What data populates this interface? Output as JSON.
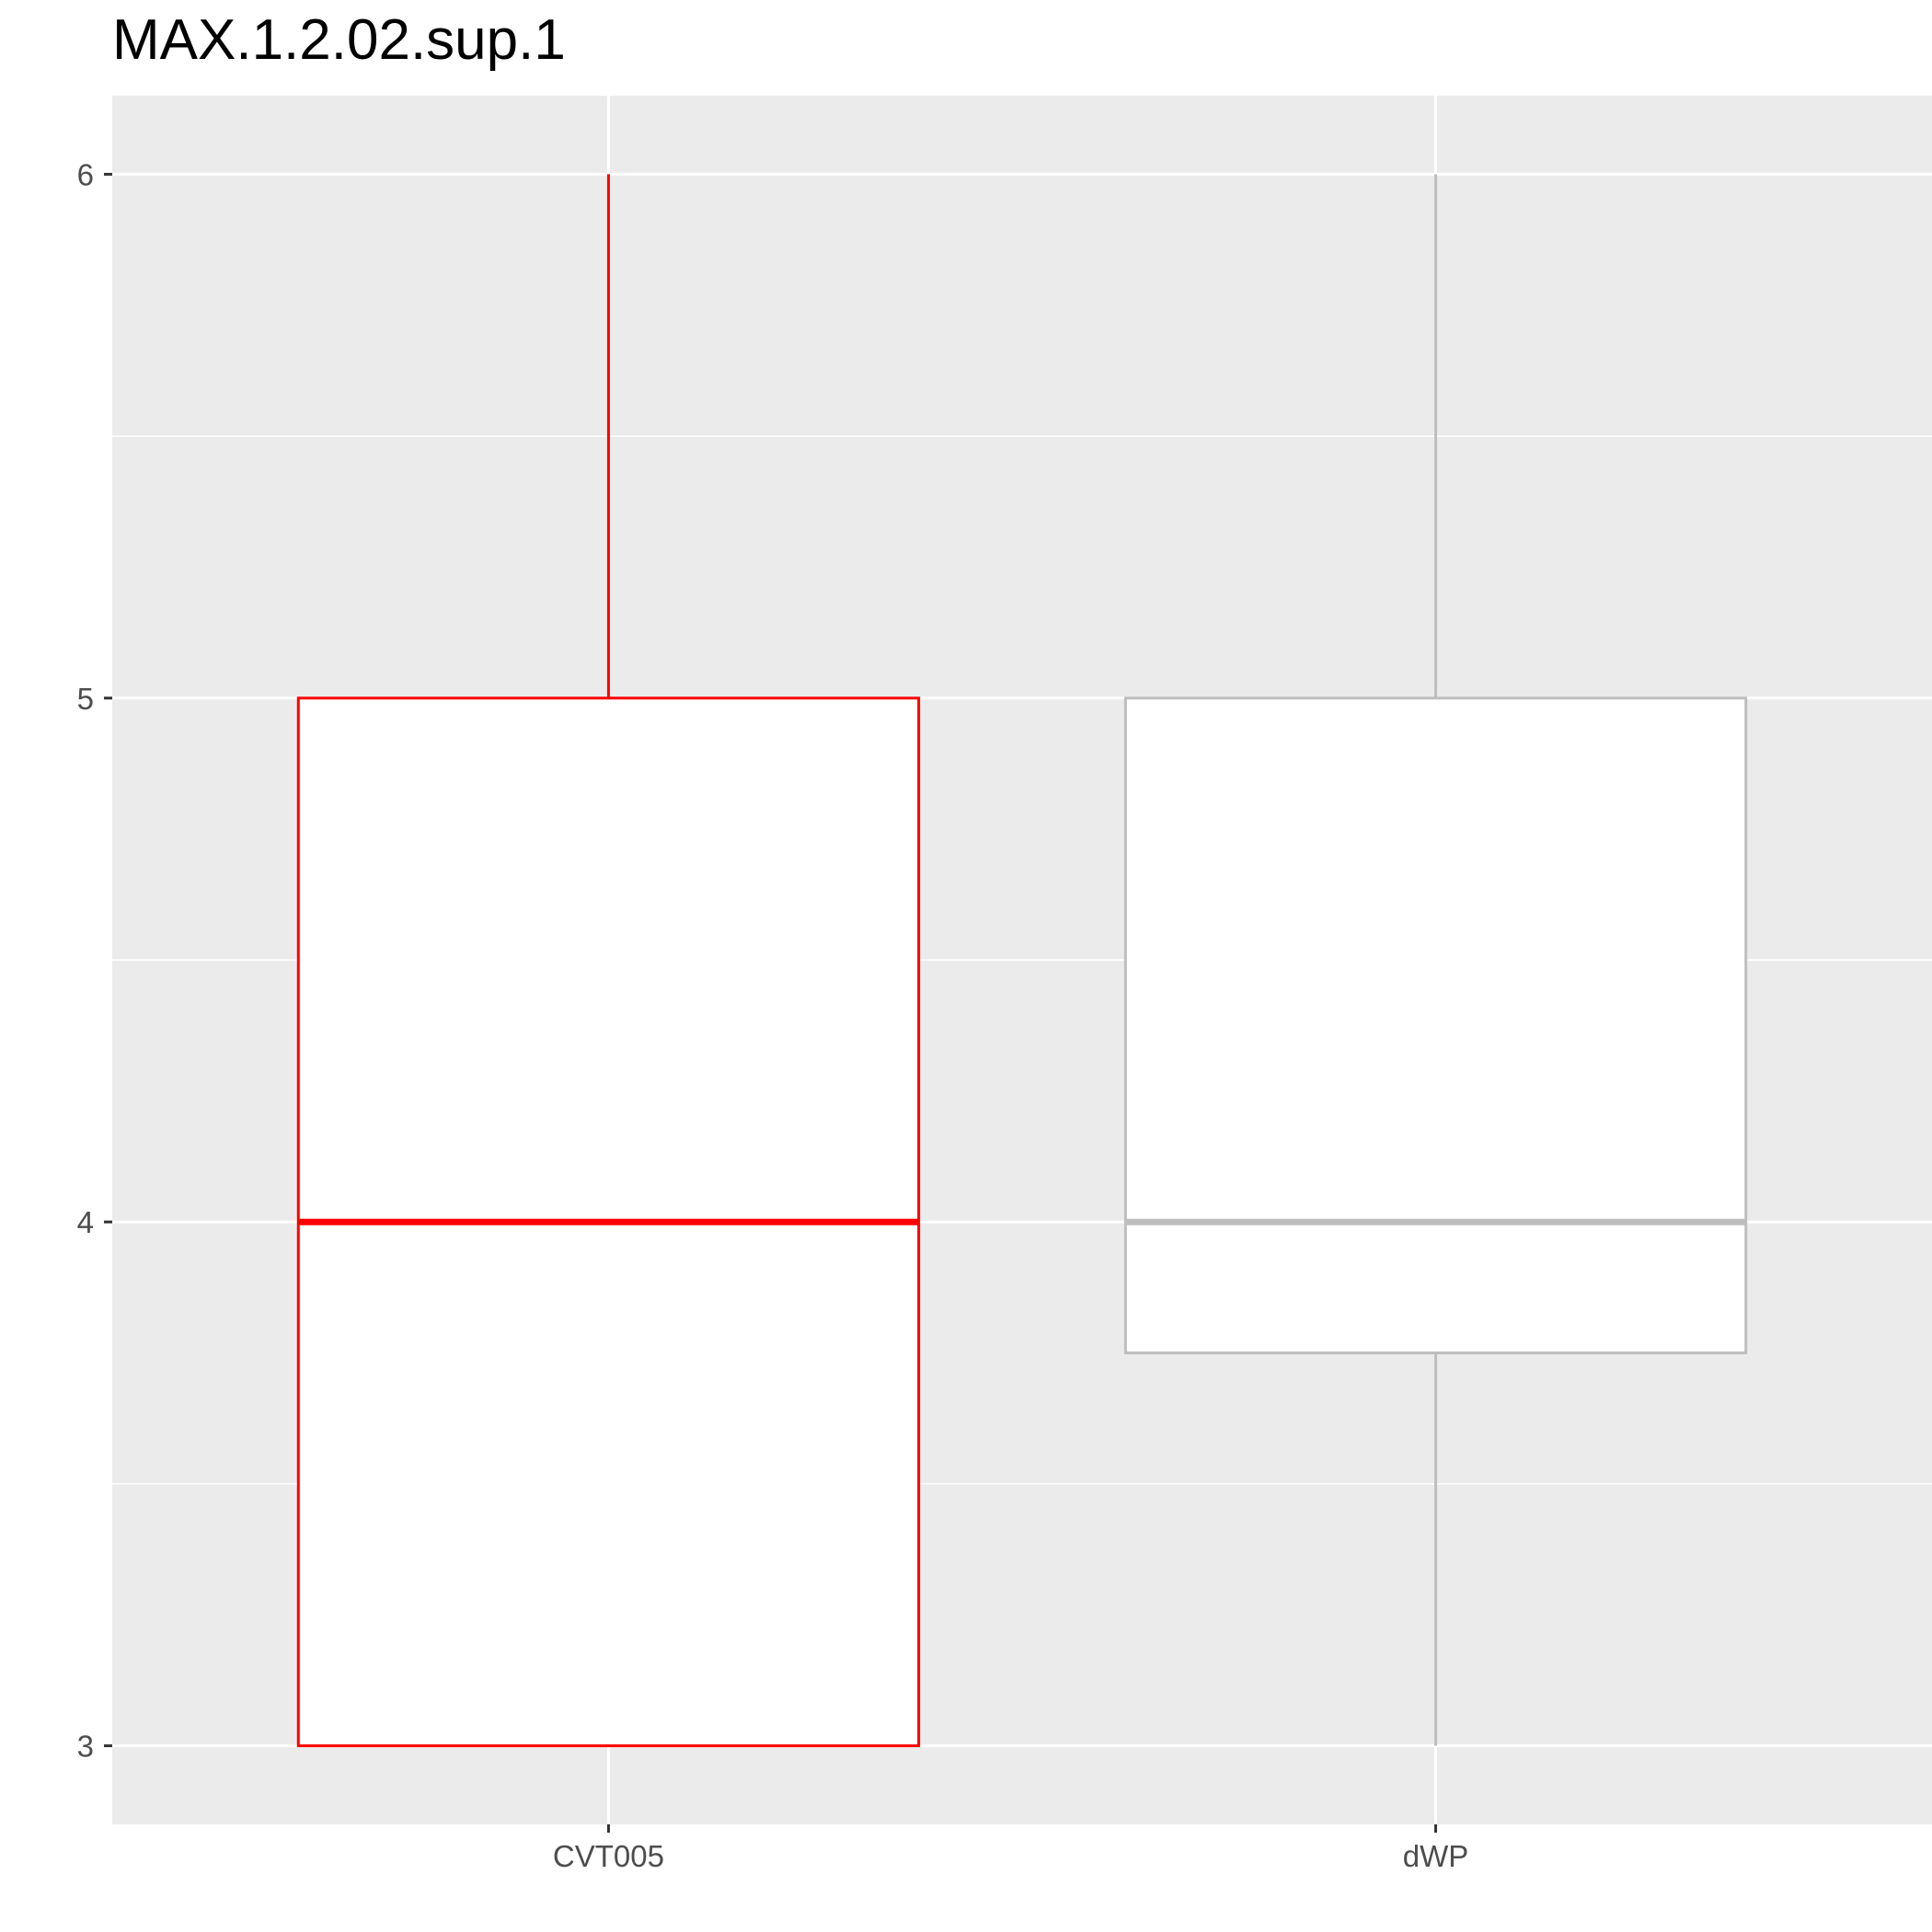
{
  "chart_data": {
    "type": "boxplot",
    "title": "MAX.1.2.02.sup.1",
    "xlabel": "",
    "ylabel": "",
    "ylim": [
      2.85,
      6.15
    ],
    "yticks": [
      3,
      4,
      5,
      6
    ],
    "ytick_labels": [
      "3",
      "4",
      "5",
      "6"
    ],
    "grid": true,
    "legend": "none",
    "categories": [
      "CVT005",
      "dWP"
    ],
    "boxes": [
      {
        "category": "CVT005",
        "whisker_low": 3,
        "q1": 3,
        "median": 4,
        "q3": 5,
        "whisker_high": 6,
        "color": "#ff0000"
      },
      {
        "category": "dWP",
        "whisker_low": 3,
        "q1": 3.75,
        "median": 4,
        "q3": 5,
        "whisker_high": 6,
        "color": "#bebebe"
      }
    ],
    "colors": {
      "panel_background": "#ebebeb",
      "grid": "#ffffff",
      "box_fill": "#ffffff"
    }
  }
}
